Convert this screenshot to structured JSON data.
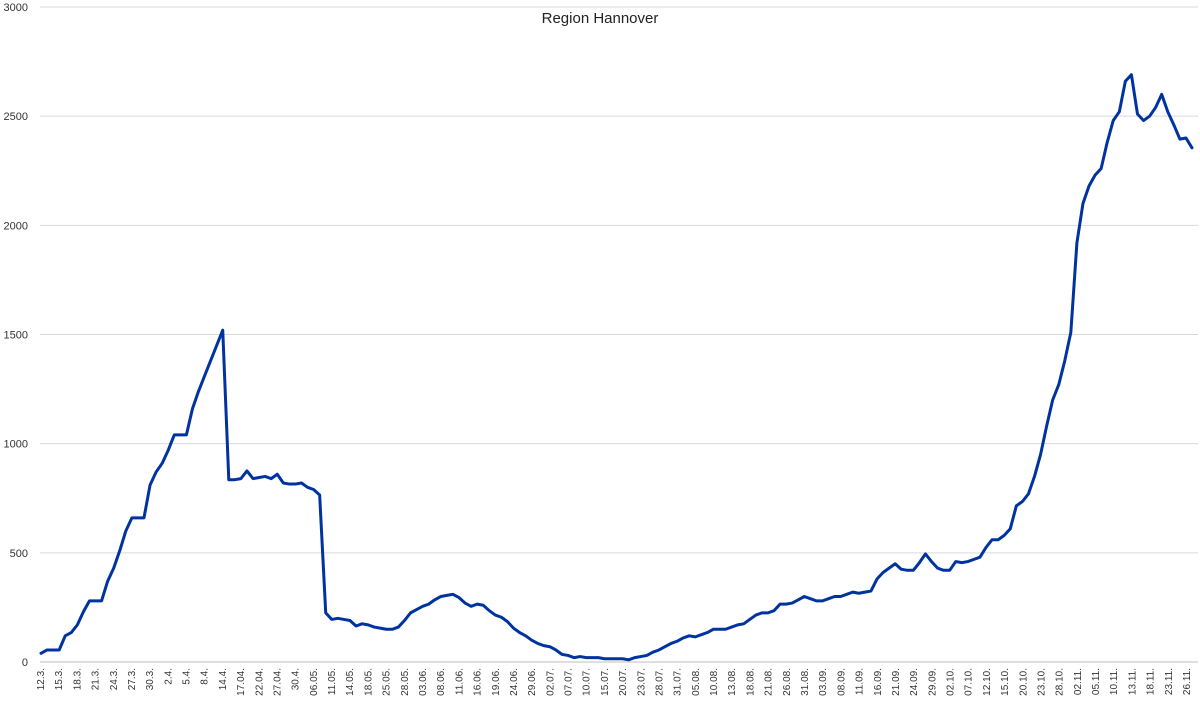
{
  "chart_data": {
    "type": "line",
    "title": "Region Hannover",
    "xlabel": "",
    "ylabel": "",
    "ylim": [
      0,
      3000
    ],
    "yticks": [
      0,
      500,
      1000,
      1500,
      2000,
      2500,
      3000
    ],
    "grid": true,
    "legend": "none",
    "line_color": "#0033a0",
    "x_tick_labels": [
      "12.3.",
      "15.3.",
      "18.3.",
      "21.3.",
      "24.3.",
      "27.3.",
      "30.3.",
      "2.4.",
      "5.4.",
      "8.4.",
      "14.4.",
      "17.04.",
      "22.04.",
      "27.04.",
      "30.4.",
      "06.05.",
      "11.05.",
      "14.05.",
      "18.05.",
      "25.05.",
      "28.05.",
      "03.06.",
      "08.06.",
      "11.06.",
      "16.06.",
      "19.06.",
      "24.06.",
      "29.06.",
      "02.07.",
      "07.07.",
      "10.07.",
      "15.07.",
      "20.07.",
      "23.07.",
      "28.07.",
      "31.07.",
      "05.08.",
      "10.08.",
      "13.08.",
      "18.08.",
      "21.08.",
      "26.08.",
      "31.08.",
      "03.09.",
      "08.09.",
      "11.09.",
      "16.09.",
      "21.09.",
      "24.09.",
      "29.09.",
      "02.10.",
      "07.10.",
      "12.10.",
      "15.10.",
      "20.10.",
      "23.10.",
      "28.10.",
      "02.11.",
      "05.11.",
      "10.11.",
      "13.11.",
      "18.11.",
      "23.11.",
      "26.11."
    ],
    "series": [
      {
        "values": [
          40,
          55,
          55,
          55,
          120,
          135,
          170,
          230,
          280,
          280,
          280,
          370,
          430,
          510,
          600,
          660,
          660,
          660,
          810,
          870,
          910,
          970,
          1040,
          1040,
          1040,
          1160,
          1240,
          1310,
          1380,
          1450,
          1520,
          835,
          835,
          840,
          875,
          840,
          845,
          850,
          840,
          860,
          820,
          815,
          815,
          820,
          800,
          790,
          765,
          225,
          195,
          200,
          195,
          190,
          165,
          175,
          170,
          160,
          155,
          150,
          150,
          160,
          190,
          225,
          240,
          255,
          265,
          285,
          300,
          305,
          310,
          295,
          270,
          255,
          265,
          260,
          235,
          215,
          205,
          185,
          155,
          135,
          120,
          100,
          85,
          75,
          70,
          55,
          35,
          30,
          20,
          25,
          20,
          20,
          20,
          15,
          15,
          15,
          15,
          10,
          20,
          25,
          30,
          45,
          55,
          70,
          85,
          95,
          110,
          120,
          115,
          125,
          135,
          150,
          150,
          150,
          160,
          170,
          175,
          195,
          215,
          225,
          225,
          235,
          265,
          265,
          270,
          285,
          300,
          290,
          280,
          280,
          290,
          300,
          300,
          310,
          320,
          315,
          320,
          325,
          380,
          410,
          430,
          450,
          425,
          420,
          420,
          455,
          495,
          460,
          430,
          420,
          420,
          460,
          455,
          460,
          470,
          480,
          525,
          560,
          560,
          580,
          610,
          715,
          735,
          770,
          850,
          950,
          1080,
          1200,
          1270,
          1380,
          1510,
          1920,
          2100,
          2180,
          2230,
          2260,
          2380,
          2480,
          2520,
          2660,
          2690,
          2510,
          2480,
          2500,
          2540,
          2600,
          2520,
          2460,
          2395,
          2400,
          2355
        ]
      }
    ]
  }
}
